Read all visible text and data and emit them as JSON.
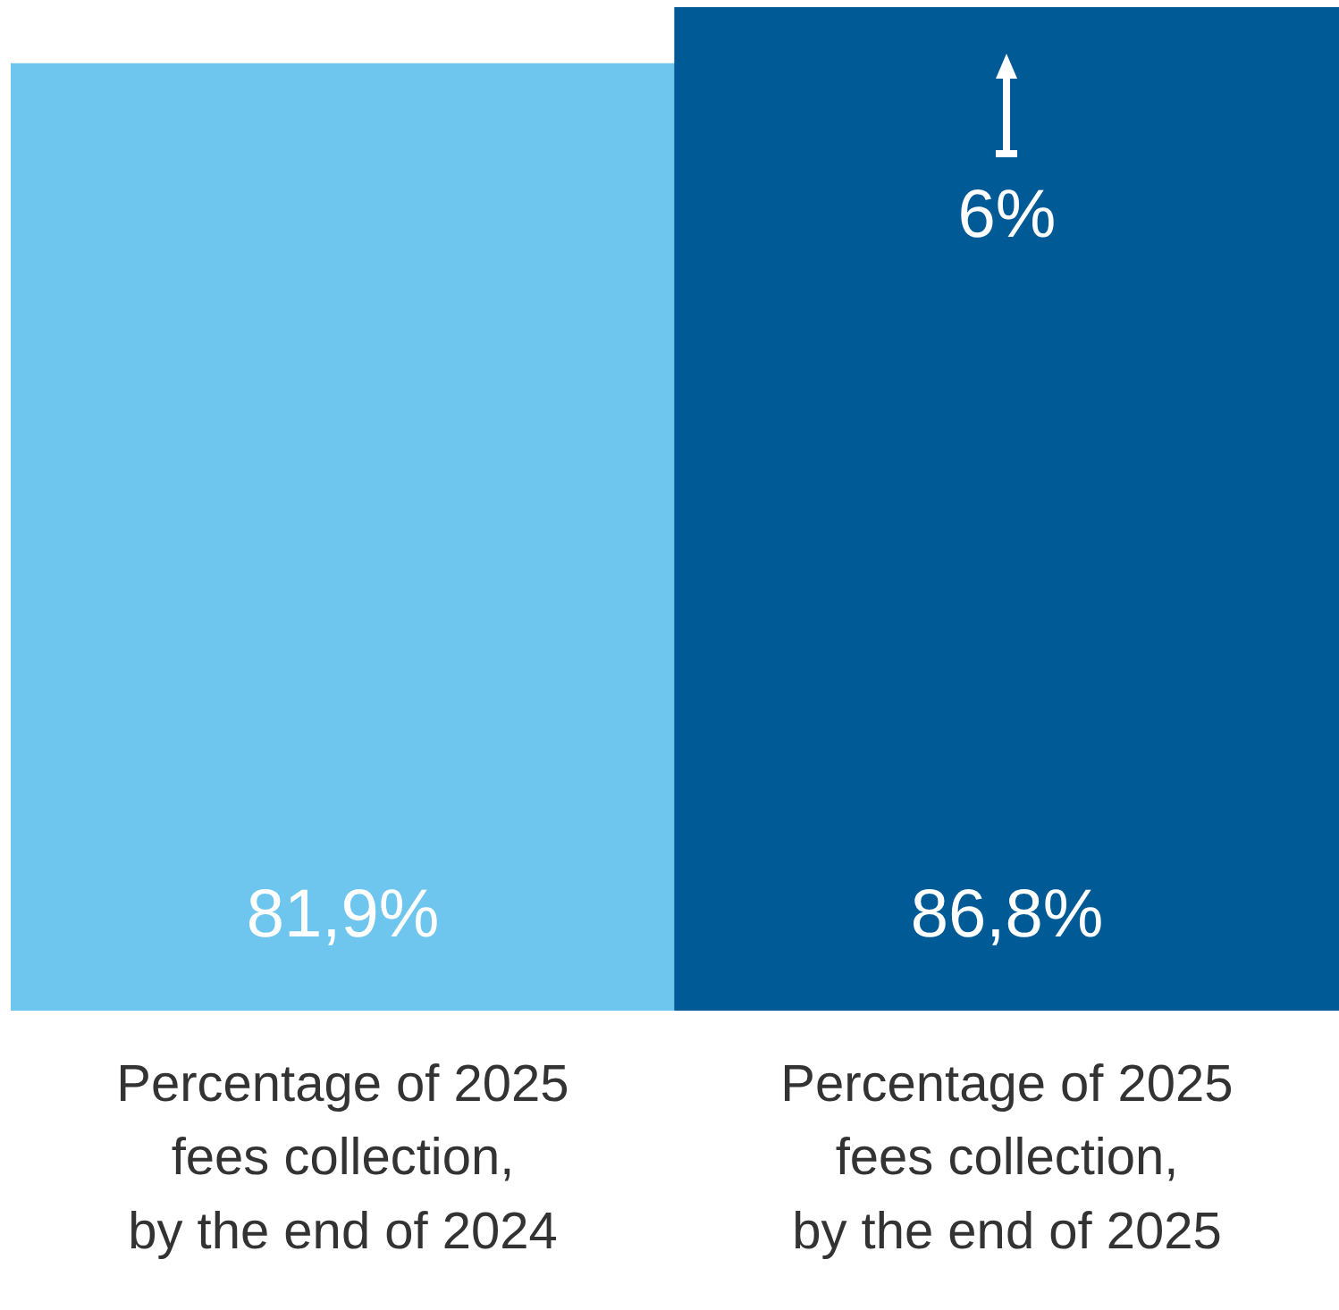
{
  "chart_data": {
    "type": "bar",
    "categories": [
      "Percentage of 2025 fees collection, by the end of 2024",
      "Percentage of 2025 fees collection, by the end of 2025"
    ],
    "values": [
      81.9,
      86.8
    ],
    "colors": [
      "#6ec6ee",
      "#005a96"
    ],
    "value_labels": [
      "81,9%",
      "86,8%"
    ],
    "annotations": [
      "6%"
    ],
    "grid": false,
    "legend": false
  }
}
